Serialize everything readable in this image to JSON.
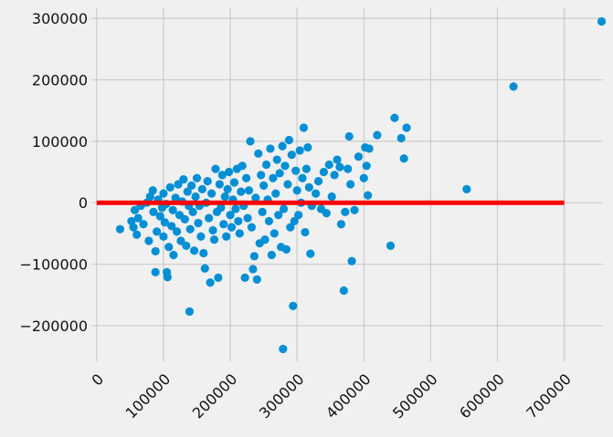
{
  "chart_data": {
    "type": "scatter",
    "title": "",
    "xlabel": "",
    "ylabel": "",
    "xlim": [
      -8000,
      758000
    ],
    "ylim": [
      -258000,
      318000
    ],
    "x_ticks": [
      0,
      100000,
      200000,
      300000,
      400000,
      500000,
      600000,
      700000
    ],
    "x_tick_labels": [
      "0",
      "100000",
      "200000",
      "300000",
      "400000",
      "500000",
      "600000",
      "700000"
    ],
    "y_ticks": [
      -200000,
      -100000,
      0,
      100000,
      200000,
      300000
    ],
    "y_tick_labels": [
      "−200000",
      "−100000",
      "0",
      "100000",
      "200000",
      "300000"
    ],
    "grid": true,
    "colors": {
      "points": "#008fd5",
      "reference_line": "#ff0000",
      "background": "#f0f0f0",
      "grid": "#cbcbcb"
    },
    "reference_line": {
      "y": 0,
      "x_start": 0,
      "x_end": 700000
    },
    "series": [
      {
        "points": [
          [
            35000,
            -43000
          ],
          [
            52000,
            -30000
          ],
          [
            55000,
            -40000
          ],
          [
            57000,
            -12000
          ],
          [
            60000,
            -52000
          ],
          [
            62000,
            -25000
          ],
          [
            66000,
            -5000
          ],
          [
            70000,
            -35000
          ],
          [
            75000,
            0
          ],
          [
            78000,
            -62000
          ],
          [
            80000,
            10000
          ],
          [
            84000,
            20000
          ],
          [
            85000,
            -15000
          ],
          [
            88000,
            -113000
          ],
          [
            88000,
            -79000
          ],
          [
            90000,
            -47000
          ],
          [
            92000,
            5000
          ],
          [
            95000,
            -22000
          ],
          [
            98000,
            -8000
          ],
          [
            100000,
            15000
          ],
          [
            100000,
            -55000
          ],
          [
            102000,
            -32000
          ],
          [
            104000,
            -2000
          ],
          [
            105000,
            -113000
          ],
          [
            106000,
            -121000
          ],
          [
            108000,
            -72000
          ],
          [
            110000,
            25000
          ],
          [
            112000,
            -38000
          ],
          [
            114000,
            -12000
          ],
          [
            115000,
            -85000
          ],
          [
            118000,
            8000
          ],
          [
            120000,
            -47000
          ],
          [
            122000,
            30000
          ],
          [
            124000,
            -20000
          ],
          [
            126000,
            -62000
          ],
          [
            128000,
            2000
          ],
          [
            130000,
            38000
          ],
          [
            132000,
            -27000
          ],
          [
            134000,
            -70000
          ],
          [
            136000,
            18000
          ],
          [
            138000,
            -5000
          ],
          [
            139000,
            -177000
          ],
          [
            140000,
            -43000
          ],
          [
            142000,
            28000
          ],
          [
            144000,
            -15000
          ],
          [
            146000,
            -78000
          ],
          [
            148000,
            10000
          ],
          [
            150000,
            40000
          ],
          [
            152000,
            -33000
          ],
          [
            154000,
            -5000
          ],
          [
            156000,
            -55000
          ],
          [
            158000,
            22000
          ],
          [
            160000,
            -82000
          ],
          [
            162000,
            -107000
          ],
          [
            164000,
            0
          ],
          [
            166000,
            35000
          ],
          [
            168000,
            -25000
          ],
          [
            170000,
            -130000
          ],
          [
            172000,
            15000
          ],
          [
            174000,
            -45000
          ],
          [
            176000,
            -60000
          ],
          [
            178000,
            55000
          ],
          [
            180000,
            -15000
          ],
          [
            182000,
            -122000
          ],
          [
            184000,
            30000
          ],
          [
            186000,
            -8000
          ],
          [
            188000,
            45000
          ],
          [
            190000,
            -35000
          ],
          [
            192000,
            10000
          ],
          [
            194000,
            -55000
          ],
          [
            196000,
            22000
          ],
          [
            198000,
            50000
          ],
          [
            200000,
            -20000
          ],
          [
            202000,
            -40000
          ],
          [
            204000,
            5000
          ],
          [
            206000,
            33000
          ],
          [
            208000,
            -10000
          ],
          [
            210000,
            55000
          ],
          [
            212000,
            -30000
          ],
          [
            214000,
            -50000
          ],
          [
            216000,
            18000
          ],
          [
            218000,
            60000
          ],
          [
            220000,
            -5000
          ],
          [
            222000,
            -122000
          ],
          [
            224000,
            40000
          ],
          [
            226000,
            -25000
          ],
          [
            228000,
            20000
          ],
          [
            230000,
            100000
          ],
          [
            232000,
            -40000
          ],
          [
            234000,
            -108000
          ],
          [
            236000,
            -87000
          ],
          [
            238000,
            8000
          ],
          [
            240000,
            -125000
          ],
          [
            242000,
            80000
          ],
          [
            244000,
            -66000
          ],
          [
            246000,
            45000
          ],
          [
            248000,
            -15000
          ],
          [
            250000,
            28000
          ],
          [
            252000,
            -60000
          ],
          [
            254000,
            62000
          ],
          [
            256000,
            5000
          ],
          [
            258000,
            -30000
          ],
          [
            260000,
            88000
          ],
          [
            262000,
            -85000
          ],
          [
            264000,
            40000
          ],
          [
            266000,
            -50000
          ],
          [
            268000,
            15000
          ],
          [
            270000,
            70000
          ],
          [
            272000,
            -20000
          ],
          [
            274000,
            48000
          ],
          [
            276000,
            -72000
          ],
          [
            278000,
            92000
          ],
          [
            279000,
            -238000
          ],
          [
            280000,
            -10000
          ],
          [
            282000,
            60000
          ],
          [
            284000,
            -76000
          ],
          [
            286000,
            30000
          ],
          [
            288000,
            102000
          ],
          [
            290000,
            -40000
          ],
          [
            292000,
            78000
          ],
          [
            294000,
            -168000
          ],
          [
            296000,
            -30000
          ],
          [
            298000,
            52000
          ],
          [
            300000,
            20000
          ],
          [
            302000,
            -20000
          ],
          [
            304000,
            85000
          ],
          [
            306000,
            0
          ],
          [
            308000,
            40000
          ],
          [
            310000,
            122000
          ],
          [
            312000,
            -48000
          ],
          [
            314000,
            55000
          ],
          [
            316000,
            90000
          ],
          [
            318000,
            25000
          ],
          [
            320000,
            -83000
          ],
          [
            322000,
            -5000
          ],
          [
            328000,
            15000
          ],
          [
            332000,
            35000
          ],
          [
            336000,
            -10000
          ],
          [
            340000,
            50000
          ],
          [
            344000,
            -17000
          ],
          [
            348000,
            62000
          ],
          [
            352000,
            10000
          ],
          [
            356000,
            45000
          ],
          [
            360000,
            70000
          ],
          [
            364000,
            58000
          ],
          [
            366000,
            -35000
          ],
          [
            370000,
            -143000
          ],
          [
            372000,
            -15000
          ],
          [
            376000,
            55000
          ],
          [
            378000,
            108000
          ],
          [
            380000,
            30000
          ],
          [
            382000,
            -95000
          ],
          [
            386000,
            -12000
          ],
          [
            392000,
            75000
          ],
          [
            400000,
            40000
          ],
          [
            402000,
            90000
          ],
          [
            404000,
            60000
          ],
          [
            406000,
            12000
          ],
          [
            408000,
            88000
          ],
          [
            420000,
            110000
          ],
          [
            440000,
            -70000
          ],
          [
            446000,
            138000
          ],
          [
            456000,
            105000
          ],
          [
            460000,
            72000
          ],
          [
            464000,
            122000
          ],
          [
            554000,
            22000
          ],
          [
            624000,
            189000
          ],
          [
            756000,
            295000
          ]
        ]
      }
    ]
  }
}
